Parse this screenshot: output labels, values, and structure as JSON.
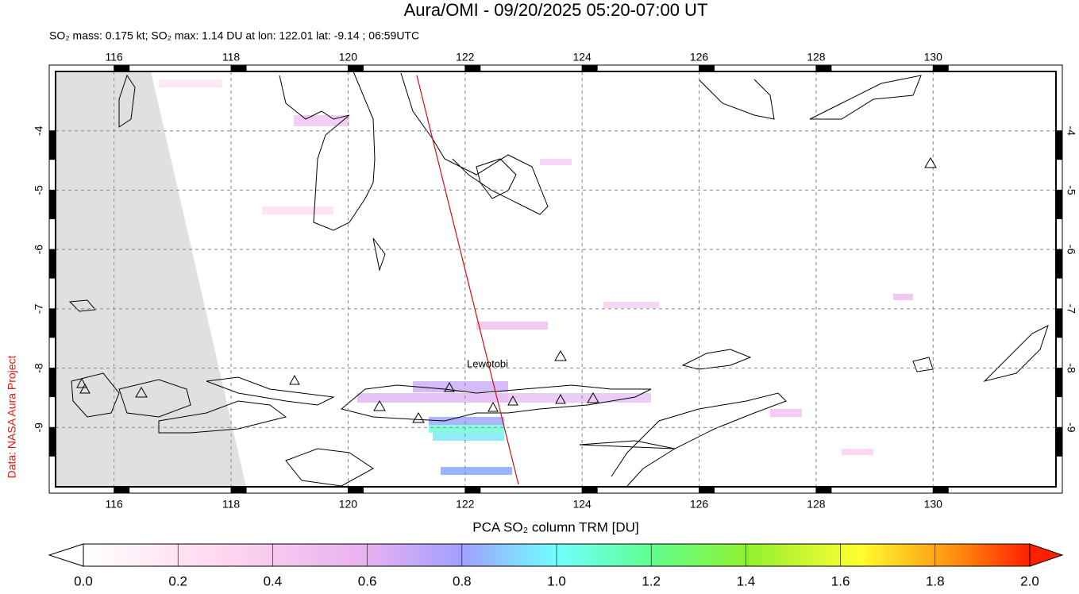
{
  "map": {
    "title": "Aura/OMI - 09/20/2025 05:20-07:00 UT",
    "subtitle": "SO₂ mass: 0.175 kt; SO₂ max: 1.14 DU at lon: 122.01 lat: -9.14 ; 06:59UTC",
    "xlim": [
      115,
      132.1
    ],
    "ylim": [
      -10,
      -3
    ],
    "xticks": [
      116,
      118,
      120,
      122,
      124,
      126,
      128,
      130
    ],
    "yticks": [
      -4,
      -5,
      -6,
      -7,
      -8,
      -9
    ],
    "volcano_label": "Lewotobi",
    "credit": "Data: NASA Aura Project",
    "colorbar": {
      "label": "PCA SO₂ column TRM [DU]",
      "range": [
        0,
        2
      ],
      "ticks": [
        {
          "value": 0,
          "label": "0.0"
        },
        {
          "value": 0.2,
          "label": "0.2"
        },
        {
          "value": 0.4,
          "label": "0.4"
        },
        {
          "value": 0.6,
          "label": "0.6"
        },
        {
          "value": 0.8,
          "label": "0.8"
        },
        {
          "value": 1,
          "label": "1.0"
        },
        {
          "value": 1.2,
          "label": "1.2"
        },
        {
          "value": 1.4,
          "label": "1.4"
        },
        {
          "value": 1.6,
          "label": "1.6"
        },
        {
          "value": 1.8,
          "label": "1.8"
        },
        {
          "value": 2,
          "label": "2.0"
        }
      ]
    }
  }
}
